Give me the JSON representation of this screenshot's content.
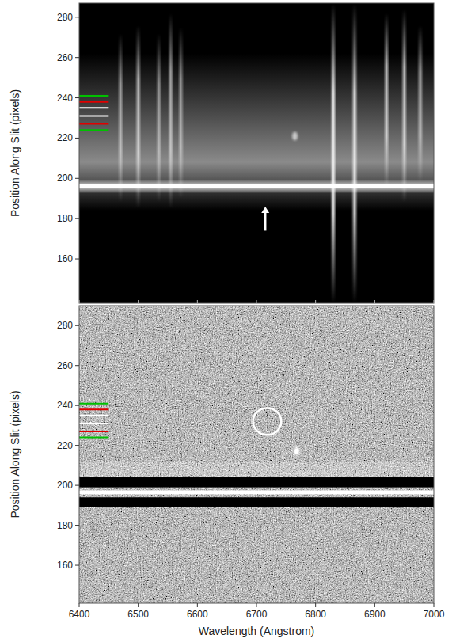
{
  "chart_data": [
    {
      "type": "spectrum_image",
      "y_label": "Position Along Slit (pixels)",
      "xlim": [
        6400,
        7000
      ],
      "ylim": [
        138,
        287
      ],
      "xticks": [
        6400,
        6500,
        6600,
        6700,
        6800,
        6900,
        7000
      ],
      "yticks": [
        160,
        180,
        200,
        220,
        240,
        260,
        280
      ],
      "tick_labels": "y",
      "glow": {
        "ymin": 184,
        "ymax": 262,
        "peak": 208
      },
      "sky_lines": [
        {
          "wavelength": 6470,
          "ymin": 188,
          "ymax": 272,
          "intensity": 0.55
        },
        {
          "wavelength": 6500,
          "ymin": 185,
          "ymax": 276,
          "intensity": 0.65
        },
        {
          "wavelength": 6535,
          "ymin": 188,
          "ymax": 272,
          "intensity": 0.5
        },
        {
          "wavelength": 6555,
          "ymin": 185,
          "ymax": 282,
          "intensity": 0.6
        },
        {
          "wavelength": 6572,
          "ymin": 190,
          "ymax": 275,
          "intensity": 0.5
        },
        {
          "wavelength": 6830,
          "ymin": 138,
          "ymax": 287,
          "intensity": 0.9
        },
        {
          "wavelength": 6866,
          "ymin": 138,
          "ymax": 287,
          "intensity": 0.85
        },
        {
          "wavelength": 6920,
          "ymin": 195,
          "ymax": 282,
          "intensity": 0.7
        },
        {
          "wavelength": 6950,
          "ymin": 188,
          "ymax": 284,
          "intensity": 0.7
        },
        {
          "wavelength": 6977,
          "ymin": 198,
          "ymax": 276,
          "intensity": 0.6
        }
      ],
      "continuum": 196,
      "emission": {
        "x": 6765,
        "y": 221
      },
      "arrow": {
        "x": 6715,
        "y_tip": 186,
        "y_tail": 174
      },
      "aperture_xmax": 6450,
      "apertures": [
        {
          "position": 241,
          "color": "#00c000"
        },
        {
          "position": 238,
          "color": "#e00000"
        },
        {
          "position": 235,
          "color": "#ffffff"
        },
        {
          "position": 231,
          "color": "#ffffff"
        },
        {
          "position": 227,
          "color": "#e00000"
        },
        {
          "position": 224,
          "color": "#00c000"
        }
      ]
    },
    {
      "type": "residual_image",
      "y_label": "Position Along Slit (pixels)",
      "x_label": "Wavelength (Angstrom)",
      "xlim": [
        6400,
        7000
      ],
      "ylim": [
        141,
        290
      ],
      "xticks": [
        6400,
        6500,
        6600,
        6700,
        6800,
        6900,
        7000
      ],
      "yticks": [
        160,
        180,
        200,
        220,
        240,
        260,
        280
      ],
      "tick_labels": true,
      "bright_band": [
        200,
        212
      ],
      "dark_bands": [
        [
          199,
          204
        ],
        [
          189,
          194
        ]
      ],
      "continuum": 196.5,
      "emission": {
        "x": 6768,
        "y": 217
      },
      "circle": {
        "x": 6718,
        "y": 232,
        "rx": 24,
        "ry": 6.7
      },
      "aperture_xmax": 6450,
      "apertures": [
        {
          "position": 241,
          "color": "#00c000"
        },
        {
          "position": 238,
          "color": "#e00000"
        },
        {
          "position": 235,
          "color": "#ffffff"
        },
        {
          "position": 231,
          "color": "#ffffff"
        },
        {
          "position": 227,
          "color": "#e00000"
        },
        {
          "position": 224,
          "color": "#00c000"
        }
      ]
    }
  ]
}
